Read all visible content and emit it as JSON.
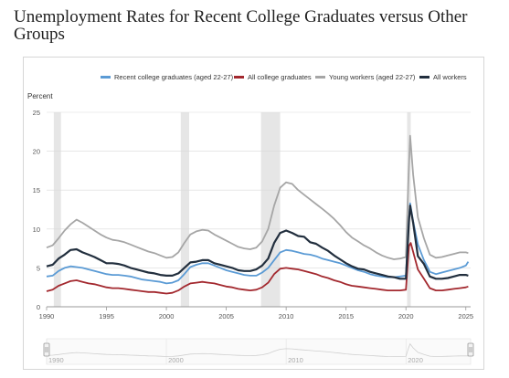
{
  "page": {
    "title": "Unemployment Rates for Recent College Graduates versus Other Groups"
  },
  "chart_data": {
    "type": "line",
    "title": "Unemployment Rates for Recent College Graduates versus Other Groups",
    "ylabel": "Percent",
    "xlabel": "",
    "xlim": [
      1990,
      2025.4
    ],
    "ylim": [
      0,
      25
    ],
    "y_ticks": [
      0,
      5,
      10,
      15,
      20,
      25
    ],
    "x_ticks": [
      1990,
      1995,
      2000,
      2005,
      2010,
      2015,
      2020,
      2025
    ],
    "navigator_ticks": [
      "1990",
      "2000",
      "2010",
      "2020"
    ],
    "grid": "horizontal",
    "legend_position": "top",
    "recessions": [
      [
        1990.6,
        1991.2
      ],
      [
        2001.2,
        2001.9
      ],
      [
        2007.9,
        2009.5
      ],
      [
        2020.1,
        2020.4
      ]
    ],
    "series": [
      {
        "name": "Recent college graduates (aged 22-27)",
        "color": "#5b9bd5",
        "points": [
          [
            1990,
            3.9
          ],
          [
            1990.5,
            4.0
          ],
          [
            1991,
            4.6
          ],
          [
            1991.5,
            5.0
          ],
          [
            1992,
            5.2
          ],
          [
            1992.5,
            5.1
          ],
          [
            1993,
            5.0
          ],
          [
            1993.5,
            4.8
          ],
          [
            1994,
            4.6
          ],
          [
            1994.5,
            4.4
          ],
          [
            1995,
            4.2
          ],
          [
            1995.5,
            4.1
          ],
          [
            1996,
            4.1
          ],
          [
            1996.5,
            4.0
          ],
          [
            1997,
            3.9
          ],
          [
            1997.5,
            3.7
          ],
          [
            1998,
            3.5
          ],
          [
            1998.5,
            3.4
          ],
          [
            1999,
            3.3
          ],
          [
            1999.5,
            3.2
          ],
          [
            2000,
            3.0
          ],
          [
            2000.5,
            3.1
          ],
          [
            2001,
            3.4
          ],
          [
            2001.5,
            4.2
          ],
          [
            2002,
            5.1
          ],
          [
            2002.5,
            5.4
          ],
          [
            2003,
            5.6
          ],
          [
            2003.5,
            5.6
          ],
          [
            2004,
            5.3
          ],
          [
            2004.5,
            5.0
          ],
          [
            2005,
            4.7
          ],
          [
            2005.5,
            4.5
          ],
          [
            2006,
            4.3
          ],
          [
            2006.5,
            4.1
          ],
          [
            2007,
            4.0
          ],
          [
            2007.5,
            4.0
          ],
          [
            2008,
            4.4
          ],
          [
            2008.5,
            5.0
          ],
          [
            2009,
            6.0
          ],
          [
            2009.5,
            7.0
          ],
          [
            2010,
            7.3
          ],
          [
            2010.5,
            7.2
          ],
          [
            2011,
            7.0
          ],
          [
            2011.5,
            6.8
          ],
          [
            2012,
            6.7
          ],
          [
            2012.5,
            6.5
          ],
          [
            2013,
            6.2
          ],
          [
            2013.5,
            6.0
          ],
          [
            2014,
            5.8
          ],
          [
            2014.5,
            5.6
          ],
          [
            2015,
            5.3
          ],
          [
            2015.5,
            5.0
          ],
          [
            2016,
            4.7
          ],
          [
            2016.5,
            4.5
          ],
          [
            2017,
            4.2
          ],
          [
            2017.5,
            4.0
          ],
          [
            2018,
            3.9
          ],
          [
            2018.5,
            3.8
          ],
          [
            2019,
            3.8
          ],
          [
            2019.5,
            3.9
          ],
          [
            2020,
            4.0
          ],
          [
            2020.2,
            10.0
          ],
          [
            2020.35,
            13.3
          ],
          [
            2020.6,
            11.0
          ],
          [
            2021,
            8.0
          ],
          [
            2021.5,
            6.0
          ],
          [
            2022,
            4.5
          ],
          [
            2022.5,
            4.2
          ],
          [
            2023,
            4.4
          ],
          [
            2023.5,
            4.6
          ],
          [
            2024,
            4.8
          ],
          [
            2024.5,
            5.0
          ],
          [
            2025,
            5.3
          ],
          [
            2025.2,
            5.8
          ]
        ]
      },
      {
        "name": "All college graduates",
        "color": "#a3292f",
        "points": [
          [
            1990,
            2.0
          ],
          [
            1990.5,
            2.2
          ],
          [
            1991,
            2.7
          ],
          [
            1991.5,
            3.0
          ],
          [
            1992,
            3.3
          ],
          [
            1992.5,
            3.4
          ],
          [
            1993,
            3.2
          ],
          [
            1993.5,
            3.0
          ],
          [
            1994,
            2.9
          ],
          [
            1994.5,
            2.7
          ],
          [
            1995,
            2.5
          ],
          [
            1995.5,
            2.4
          ],
          [
            1996,
            2.4
          ],
          [
            1996.5,
            2.3
          ],
          [
            1997,
            2.2
          ],
          [
            1997.5,
            2.1
          ],
          [
            1998,
            2.0
          ],
          [
            1998.5,
            1.9
          ],
          [
            1999,
            1.9
          ],
          [
            1999.5,
            1.8
          ],
          [
            2000,
            1.7
          ],
          [
            2000.5,
            1.8
          ],
          [
            2001,
            2.1
          ],
          [
            2001.5,
            2.6
          ],
          [
            2002,
            3.0
          ],
          [
            2002.5,
            3.1
          ],
          [
            2003,
            3.2
          ],
          [
            2003.5,
            3.1
          ],
          [
            2004,
            3.0
          ],
          [
            2004.5,
            2.8
          ],
          [
            2005,
            2.6
          ],
          [
            2005.5,
            2.5
          ],
          [
            2006,
            2.3
          ],
          [
            2006.5,
            2.2
          ],
          [
            2007,
            2.1
          ],
          [
            2007.5,
            2.2
          ],
          [
            2008,
            2.5
          ],
          [
            2008.5,
            3.1
          ],
          [
            2009,
            4.2
          ],
          [
            2009.5,
            4.9
          ],
          [
            2010,
            5.0
          ],
          [
            2010.5,
            4.9
          ],
          [
            2011,
            4.8
          ],
          [
            2011.5,
            4.6
          ],
          [
            2012,
            4.4
          ],
          [
            2012.5,
            4.2
          ],
          [
            2013,
            3.9
          ],
          [
            2013.5,
            3.7
          ],
          [
            2014,
            3.4
          ],
          [
            2014.5,
            3.2
          ],
          [
            2015,
            2.9
          ],
          [
            2015.5,
            2.7
          ],
          [
            2016,
            2.6
          ],
          [
            2016.5,
            2.5
          ],
          [
            2017,
            2.4
          ],
          [
            2017.5,
            2.3
          ],
          [
            2018,
            2.2
          ],
          [
            2018.5,
            2.1
          ],
          [
            2019,
            2.1
          ],
          [
            2019.5,
            2.1
          ],
          [
            2020,
            2.2
          ],
          [
            2020.25,
            7.8
          ],
          [
            2020.4,
            8.2
          ],
          [
            2020.7,
            6.5
          ],
          [
            2021,
            4.8
          ],
          [
            2021.5,
            3.6
          ],
          [
            2022,
            2.4
          ],
          [
            2022.5,
            2.1
          ],
          [
            2023,
            2.1
          ],
          [
            2023.5,
            2.2
          ],
          [
            2024,
            2.3
          ],
          [
            2024.5,
            2.4
          ],
          [
            2025,
            2.5
          ],
          [
            2025.2,
            2.6
          ]
        ]
      },
      {
        "name": "Young workers (aged 22-27)",
        "color": "#a6a6a6",
        "points": [
          [
            1990,
            7.6
          ],
          [
            1990.5,
            7.9
          ],
          [
            1991,
            8.8
          ],
          [
            1991.5,
            9.8
          ],
          [
            1992,
            10.6
          ],
          [
            1992.5,
            11.2
          ],
          [
            1993,
            10.8
          ],
          [
            1993.5,
            10.3
          ],
          [
            1994,
            9.8
          ],
          [
            1994.5,
            9.3
          ],
          [
            1995,
            8.9
          ],
          [
            1995.5,
            8.6
          ],
          [
            1996,
            8.5
          ],
          [
            1996.5,
            8.3
          ],
          [
            1997,
            8.0
          ],
          [
            1997.5,
            7.7
          ],
          [
            1998,
            7.4
          ],
          [
            1998.5,
            7.1
          ],
          [
            1999,
            6.9
          ],
          [
            1999.5,
            6.6
          ],
          [
            2000,
            6.3
          ],
          [
            2000.5,
            6.4
          ],
          [
            2001,
            7.0
          ],
          [
            2001.5,
            8.2
          ],
          [
            2002,
            9.3
          ],
          [
            2002.5,
            9.7
          ],
          [
            2003,
            9.9
          ],
          [
            2003.5,
            9.8
          ],
          [
            2004,
            9.3
          ],
          [
            2004.5,
            8.9
          ],
          [
            2005,
            8.5
          ],
          [
            2005.5,
            8.1
          ],
          [
            2006,
            7.7
          ],
          [
            2006.5,
            7.5
          ],
          [
            2007,
            7.4
          ],
          [
            2007.5,
            7.6
          ],
          [
            2008,
            8.4
          ],
          [
            2008.5,
            10.0
          ],
          [
            2009,
            13.0
          ],
          [
            2009.5,
            15.3
          ],
          [
            2010,
            16.0
          ],
          [
            2010.5,
            15.8
          ],
          [
            2011,
            15.0
          ],
          [
            2011.5,
            14.4
          ],
          [
            2012,
            13.8
          ],
          [
            2012.5,
            13.2
          ],
          [
            2013,
            12.6
          ],
          [
            2013.5,
            12.0
          ],
          [
            2014,
            11.3
          ],
          [
            2014.5,
            10.5
          ],
          [
            2015,
            9.6
          ],
          [
            2015.5,
            8.9
          ],
          [
            2016,
            8.4
          ],
          [
            2016.5,
            7.9
          ],
          [
            2017,
            7.5
          ],
          [
            2017.5,
            7.0
          ],
          [
            2018,
            6.6
          ],
          [
            2018.5,
            6.3
          ],
          [
            2019,
            6.1
          ],
          [
            2019.5,
            6.2
          ],
          [
            2020,
            6.4
          ],
          [
            2020.2,
            16.0
          ],
          [
            2020.35,
            22.0
          ],
          [
            2020.6,
            17.0
          ],
          [
            2021,
            11.5
          ],
          [
            2021.5,
            8.8
          ],
          [
            2022,
            6.7
          ],
          [
            2022.5,
            6.3
          ],
          [
            2023,
            6.4
          ],
          [
            2023.5,
            6.6
          ],
          [
            2024,
            6.8
          ],
          [
            2024.5,
            7.0
          ],
          [
            2025,
            7.0
          ],
          [
            2025.2,
            6.9
          ]
        ]
      },
      {
        "name": "All workers",
        "color": "#222f3e",
        "points": [
          [
            1990,
            5.2
          ],
          [
            1990.5,
            5.4
          ],
          [
            1991,
            6.2
          ],
          [
            1991.5,
            6.7
          ],
          [
            1992,
            7.3
          ],
          [
            1992.5,
            7.4
          ],
          [
            1993,
            7.0
          ],
          [
            1993.5,
            6.7
          ],
          [
            1994,
            6.4
          ],
          [
            1994.5,
            6.0
          ],
          [
            1995,
            5.6
          ],
          [
            1995.5,
            5.6
          ],
          [
            1996,
            5.5
          ],
          [
            1996.5,
            5.3
          ],
          [
            1997,
            5.0
          ],
          [
            1997.5,
            4.8
          ],
          [
            1998,
            4.6
          ],
          [
            1998.5,
            4.4
          ],
          [
            1999,
            4.3
          ],
          [
            1999.5,
            4.1
          ],
          [
            2000,
            4.0
          ],
          [
            2000.5,
            4.0
          ],
          [
            2001,
            4.3
          ],
          [
            2001.5,
            5.0
          ],
          [
            2002,
            5.7
          ],
          [
            2002.5,
            5.8
          ],
          [
            2003,
            6.0
          ],
          [
            2003.5,
            6.0
          ],
          [
            2004,
            5.6
          ],
          [
            2004.5,
            5.4
          ],
          [
            2005,
            5.2
          ],
          [
            2005.5,
            5.0
          ],
          [
            2006,
            4.7
          ],
          [
            2006.5,
            4.6
          ],
          [
            2007,
            4.6
          ],
          [
            2007.5,
            4.8
          ],
          [
            2008,
            5.3
          ],
          [
            2008.5,
            6.2
          ],
          [
            2009,
            8.2
          ],
          [
            2009.5,
            9.5
          ],
          [
            2010,
            9.8
          ],
          [
            2010.5,
            9.5
          ],
          [
            2011,
            9.1
          ],
          [
            2011.5,
            9.0
          ],
          [
            2012,
            8.3
          ],
          [
            2012.5,
            8.1
          ],
          [
            2013,
            7.6
          ],
          [
            2013.5,
            7.2
          ],
          [
            2014,
            6.6
          ],
          [
            2014.5,
            6.1
          ],
          [
            2015,
            5.6
          ],
          [
            2015.5,
            5.2
          ],
          [
            2016,
            4.9
          ],
          [
            2016.5,
            4.8
          ],
          [
            2017,
            4.5
          ],
          [
            2017.5,
            4.3
          ],
          [
            2018,
            4.1
          ],
          [
            2018.5,
            3.9
          ],
          [
            2019,
            3.8
          ],
          [
            2019.5,
            3.6
          ],
          [
            2020,
            3.6
          ],
          [
            2020.25,
            11.0
          ],
          [
            2020.35,
            13.0
          ],
          [
            2020.6,
            10.8
          ],
          [
            2021,
            6.5
          ],
          [
            2021.5,
            5.5
          ],
          [
            2022,
            3.9
          ],
          [
            2022.5,
            3.6
          ],
          [
            2023,
            3.6
          ],
          [
            2023.5,
            3.7
          ],
          [
            2024,
            3.9
          ],
          [
            2024.5,
            4.1
          ],
          [
            2025,
            4.1
          ],
          [
            2025.2,
            4.0
          ]
        ]
      }
    ]
  }
}
